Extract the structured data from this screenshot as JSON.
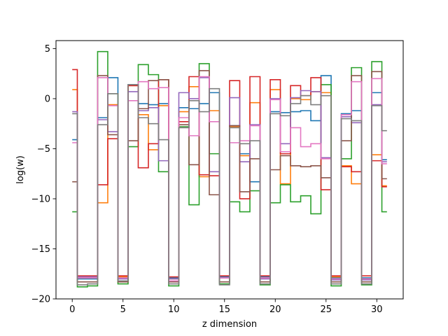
{
  "chart_data": {
    "type": "line",
    "drawstyle": "steps-mid",
    "title": "",
    "xlabel": "z dimension",
    "ylabel": "log(w)",
    "xlim": [
      -1.6,
      32.6
    ],
    "ylim": [
      -20,
      5.8
    ],
    "xticks": [
      0,
      5,
      10,
      15,
      20,
      25,
      30
    ],
    "yticks": [
      -20,
      -15,
      -10,
      -5,
      0,
      5
    ],
    "grid": false,
    "x": [
      0,
      1,
      2,
      3,
      4,
      5,
      6,
      7,
      8,
      9,
      10,
      11,
      12,
      13,
      14,
      15,
      16,
      17,
      18,
      19,
      20,
      21,
      22,
      23,
      24,
      25,
      26,
      27,
      28,
      29,
      30,
      31
    ],
    "series": [
      {
        "color": "#1f77b4",
        "values": [
          -4.1,
          -18.0,
          -18.0,
          -1.9,
          2.1,
          -17.9,
          1.4,
          -0.5,
          -0.6,
          -0.5,
          -17.9,
          -0.9,
          -1.0,
          -0.5,
          0.6,
          -17.8,
          -2.7,
          -5.5,
          -8.3,
          -17.8,
          -1.3,
          -1.4,
          -1.3,
          -1.2,
          -2.2,
          2.3,
          -17.9,
          -1.5,
          -1.2,
          -17.9,
          0.6,
          -6.1
        ]
      },
      {
        "color": "#ff7f0e",
        "values": [
          0.9,
          -17.9,
          -17.9,
          -10.4,
          -0.6,
          -17.8,
          1.3,
          -1.6,
          -5.1,
          -0.7,
          -18.0,
          -1.3,
          1.2,
          -7.8,
          -1.2,
          -17.9,
          -2.8,
          -5.7,
          -0.4,
          -17.9,
          0.9,
          -8.5,
          0.0,
          -0.1,
          0.7,
          0.6,
          -17.8,
          -6.7,
          -8.5,
          -18.0,
          -5.6,
          -8.7
        ]
      },
      {
        "color": "#2ca02c",
        "values": [
          -11.3,
          -18.8,
          -18.7,
          4.7,
          0.5,
          -18.5,
          -4.8,
          3.4,
          2.4,
          -7.3,
          -18.7,
          -2.8,
          -10.6,
          3.5,
          -5.5,
          -18.5,
          -10.3,
          -11.3,
          -9.2,
          -18.6,
          -10.4,
          -8.6,
          -10.3,
          -9.7,
          -11.5,
          1.4,
          -18.7,
          -6.0,
          3.1,
          -18.6,
          3.7,
          -11.3
        ]
      },
      {
        "color": "#d62728",
        "values": [
          2.9,
          -17.7,
          -17.7,
          -8.6,
          -4.0,
          -17.7,
          1.3,
          -6.9,
          -4.5,
          1.9,
          -17.8,
          -2.3,
          2.2,
          -7.6,
          -7.7,
          -17.7,
          1.8,
          -10.0,
          2.2,
          -17.7,
          1.9,
          -5.5,
          1.3,
          0.3,
          2.1,
          -9.1,
          -17.7,
          -6.8,
          -7.3,
          -17.7,
          -6.2,
          -8.8
        ]
      },
      {
        "color": "#9467bd",
        "values": [
          -1.3,
          -17.8,
          -17.8,
          -2.1,
          -3.3,
          -18.0,
          0.7,
          -1.2,
          -0.9,
          -6.2,
          -18.0,
          0.6,
          0.0,
          2.1,
          -7.3,
          -17.9,
          0.1,
          -6.3,
          -2.6,
          -18.0,
          0.0,
          -4.5,
          0.1,
          0.8,
          0.7,
          -5.9,
          -18.1,
          -1.8,
          -2.4,
          -18.1,
          -0.6,
          -6.3
        ]
      },
      {
        "color": "#8c564b",
        "values": [
          -8.3,
          -18.3,
          -18.3,
          2.3,
          -3.6,
          -18.3,
          -4.2,
          -1.0,
          1.8,
          1.9,
          -18.3,
          -2.6,
          -6.6,
          2.8,
          -9.6,
          -18.3,
          -2.7,
          -9.3,
          -6.0,
          -18.3,
          -7.1,
          -5.7,
          -6.7,
          -6.8,
          -6.7,
          -7.9,
          -18.3,
          -4.2,
          2.3,
          -18.3,
          2.7,
          -8.0
        ]
      },
      {
        "color": "#e377c2",
        "values": [
          -4.4,
          -17.9,
          -17.9,
          2.1,
          -0.7,
          -17.9,
          -0.2,
          1.7,
          1.0,
          1.1,
          -18.2,
          -1.9,
          -3.7,
          2.2,
          -2.3,
          -17.9,
          -4.4,
          -4.2,
          -2.7,
          -17.9,
          -0.1,
          -5.3,
          -2.9,
          -4.8,
          -4.5,
          -6.0,
          -18.0,
          -1.6,
          1.7,
          -18.0,
          2.0,
          -6.5
        ]
      },
      {
        "color": "#7f7f7f",
        "values": [
          -1.5,
          -18.6,
          -18.5,
          -2.6,
          0.5,
          -18.2,
          1.4,
          -1.9,
          -2.5,
          -4.1,
          -18.5,
          -2.9,
          -0.2,
          -1.3,
          1.0,
          -18.6,
          -2.9,
          -4.5,
          -4.2,
          -18.5,
          -1.5,
          -1.7,
          -0.5,
          0.3,
          -0.6,
          0.3,
          -18.5,
          -2.0,
          -2.2,
          -18.5,
          -0.7,
          -3.2
        ]
      }
    ]
  }
}
